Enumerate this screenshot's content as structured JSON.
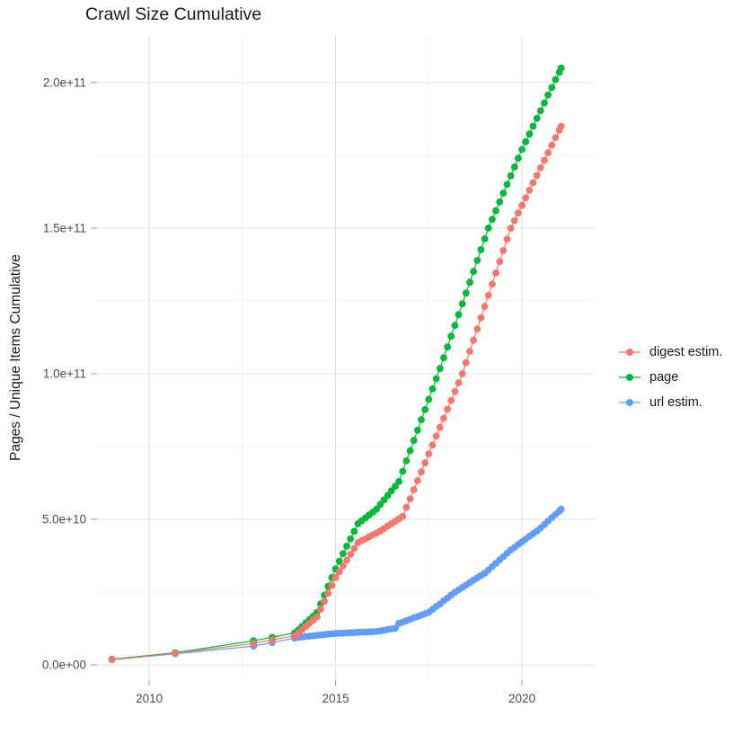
{
  "title": "Crawl Size Cumulative",
  "y_axis_title": "Pages / Unique Items Cumulative",
  "legend": {
    "position": "right",
    "items": [
      {
        "label": "digest estim.",
        "color": "#F8766D"
      },
      {
        "label": "page",
        "color": "#00BA38"
      },
      {
        "label": "url estim.",
        "color": "#619CFF"
      }
    ]
  },
  "chart_data": {
    "type": "line",
    "title": "Crawl Size Cumulative",
    "xlabel": "",
    "ylabel": "Pages / Unique Items Cumulative",
    "x_unit": "year (decimal)",
    "y_unit": "billions of items (1e9)",
    "x_domain": [
      2008.6,
      2021.95
    ],
    "y_domain_billions": [
      -5.2,
      216
    ],
    "grid": true,
    "legend_position": "right",
    "x_ticks": [
      {
        "value": 2010,
        "label": "2010"
      },
      {
        "value": 2015,
        "label": "2015"
      },
      {
        "value": 2020,
        "label": "2020"
      }
    ],
    "x_minor_ticks": [
      2012.5,
      2017.5
    ],
    "y_ticks": [
      {
        "value": 0,
        "label": "0.0e+00"
      },
      {
        "value": 50,
        "label": "5.0e+10"
      },
      {
        "value": 100,
        "label": "1.0e+11"
      },
      {
        "value": 150,
        "label": "1.5e+11"
      },
      {
        "value": 200,
        "label": "2.0e+11"
      }
    ],
    "y_minor_ticks": [
      25,
      75,
      125,
      175
    ],
    "series": [
      {
        "name": "page",
        "color": "#00BA38",
        "points": [
          [
            2009.0,
            2.0
          ],
          [
            2010.7,
            4.2
          ],
          [
            2012.8,
            8.3
          ],
          [
            2013.3,
            9.5
          ],
          [
            2013.9,
            11.0
          ],
          [
            2014.0,
            12.0
          ],
          [
            2014.1,
            13.2
          ],
          [
            2014.2,
            14.4
          ],
          [
            2014.3,
            15.6
          ],
          [
            2014.4,
            16.8
          ],
          [
            2014.5,
            18.0
          ],
          [
            2014.6,
            21.0
          ],
          [
            2014.7,
            24.0
          ],
          [
            2014.8,
            27.0
          ],
          [
            2014.9,
            30.0
          ],
          [
            2015.0,
            33.0
          ],
          [
            2015.1,
            35.6
          ],
          [
            2015.2,
            38.2
          ],
          [
            2015.3,
            40.8
          ],
          [
            2015.4,
            43.3
          ],
          [
            2015.5,
            45.9
          ],
          [
            2015.6,
            48.5
          ],
          [
            2015.7,
            49.5
          ],
          [
            2015.8,
            50.5
          ],
          [
            2015.9,
            51.5
          ],
          [
            2016.0,
            52.5
          ],
          [
            2016.1,
            53.5
          ],
          [
            2016.2,
            55.1
          ],
          [
            2016.3,
            56.7
          ],
          [
            2016.4,
            58.2
          ],
          [
            2016.5,
            59.8
          ],
          [
            2016.6,
            61.4
          ],
          [
            2016.7,
            63.0
          ],
          [
            2016.8,
            66.5
          ],
          [
            2016.9,
            70.1
          ],
          [
            2017.0,
            73.6
          ],
          [
            2017.1,
            77.1
          ],
          [
            2017.2,
            80.6
          ],
          [
            2017.3,
            84.2
          ],
          [
            2017.4,
            87.7
          ],
          [
            2017.5,
            91.2
          ],
          [
            2017.6,
            94.8
          ],
          [
            2017.7,
            98.3
          ],
          [
            2017.8,
            101.8
          ],
          [
            2017.9,
            105.5
          ],
          [
            2018.0,
            109.2
          ],
          [
            2018.1,
            112.9
          ],
          [
            2018.2,
            116.6
          ],
          [
            2018.3,
            120.3
          ],
          [
            2018.4,
            124.0
          ],
          [
            2018.5,
            127.7
          ],
          [
            2018.6,
            131.4
          ],
          [
            2018.7,
            135.1
          ],
          [
            2018.8,
            138.9
          ],
          [
            2018.9,
            142.6
          ],
          [
            2019.0,
            146.3
          ],
          [
            2019.1,
            150.0
          ],
          [
            2019.2,
            153.0
          ],
          [
            2019.3,
            156.0
          ],
          [
            2019.4,
            159.0
          ],
          [
            2019.5,
            162.0
          ],
          [
            2019.6,
            165.0
          ],
          [
            2019.7,
            168.0
          ],
          [
            2019.8,
            171.0
          ],
          [
            2019.9,
            174.0
          ],
          [
            2020.0,
            177.0
          ],
          [
            2020.1,
            179.7
          ],
          [
            2020.2,
            182.3
          ],
          [
            2020.3,
            185.0
          ],
          [
            2020.4,
            187.7
          ],
          [
            2020.5,
            190.3
          ],
          [
            2020.6,
            193.0
          ],
          [
            2020.7,
            195.7
          ],
          [
            2020.8,
            198.3
          ],
          [
            2020.9,
            201.0
          ],
          [
            2021.0,
            203.5
          ],
          [
            2021.05,
            205.0
          ]
        ]
      },
      {
        "name": "url estim.",
        "color": "#619CFF",
        "points": [
          [
            2009.0,
            1.8
          ],
          [
            2010.7,
            3.8
          ],
          [
            2012.8,
            6.5
          ],
          [
            2013.3,
            7.7
          ],
          [
            2013.9,
            9.2
          ],
          [
            2014.0,
            9.5
          ],
          [
            2014.1,
            9.6
          ],
          [
            2014.2,
            9.8
          ],
          [
            2014.3,
            9.9
          ],
          [
            2014.4,
            10.0
          ],
          [
            2014.5,
            10.2
          ],
          [
            2014.6,
            10.3
          ],
          [
            2014.7,
            10.4
          ],
          [
            2014.8,
            10.6
          ],
          [
            2014.9,
            10.7
          ],
          [
            2015.0,
            10.8
          ],
          [
            2015.1,
            10.9
          ],
          [
            2015.2,
            10.9
          ],
          [
            2015.3,
            11.0
          ],
          [
            2015.4,
            11.1
          ],
          [
            2015.5,
            11.1
          ],
          [
            2015.6,
            11.2
          ],
          [
            2015.7,
            11.3
          ],
          [
            2015.8,
            11.3
          ],
          [
            2015.9,
            11.4
          ],
          [
            2016.0,
            11.4
          ],
          [
            2016.1,
            11.5
          ],
          [
            2016.2,
            11.7
          ],
          [
            2016.3,
            11.9
          ],
          [
            2016.4,
            12.2
          ],
          [
            2016.5,
            12.4
          ],
          [
            2016.6,
            12.6
          ],
          [
            2016.7,
            14.3
          ],
          [
            2016.8,
            14.7
          ],
          [
            2016.9,
            15.2
          ],
          [
            2017.0,
            15.7
          ],
          [
            2017.1,
            16.2
          ],
          [
            2017.2,
            16.6
          ],
          [
            2017.3,
            17.1
          ],
          [
            2017.4,
            17.6
          ],
          [
            2017.5,
            18.1
          ],
          [
            2017.6,
            19.1
          ],
          [
            2017.7,
            20.1
          ],
          [
            2017.8,
            21.0
          ],
          [
            2017.9,
            22.0
          ],
          [
            2018.0,
            23.0
          ],
          [
            2018.1,
            24.0
          ],
          [
            2018.2,
            25.0
          ],
          [
            2018.3,
            25.8
          ],
          [
            2018.4,
            26.6
          ],
          [
            2018.5,
            27.4
          ],
          [
            2018.6,
            28.3
          ],
          [
            2018.7,
            29.1
          ],
          [
            2018.8,
            29.9
          ],
          [
            2018.9,
            30.7
          ],
          [
            2019.0,
            31.5
          ],
          [
            2019.1,
            32.6
          ],
          [
            2019.2,
            33.8
          ],
          [
            2019.3,
            34.9
          ],
          [
            2019.4,
            36.1
          ],
          [
            2019.5,
            37.2
          ],
          [
            2019.6,
            38.4
          ],
          [
            2019.7,
            39.5
          ],
          [
            2019.8,
            40.4
          ],
          [
            2019.9,
            41.4
          ],
          [
            2020.0,
            42.3
          ],
          [
            2020.1,
            43.2
          ],
          [
            2020.2,
            44.2
          ],
          [
            2020.3,
            45.1
          ],
          [
            2020.4,
            46.0
          ],
          [
            2020.5,
            47.0
          ],
          [
            2020.6,
            48.2
          ],
          [
            2020.7,
            49.4
          ],
          [
            2020.8,
            50.6
          ],
          [
            2020.9,
            51.7
          ],
          [
            2021.0,
            52.8
          ],
          [
            2021.05,
            53.5
          ]
        ]
      },
      {
        "name": "digest estim.",
        "color": "#F8766D",
        "points": [
          [
            2009.0,
            1.8
          ],
          [
            2010.7,
            4.0
          ],
          [
            2012.8,
            7.4
          ],
          [
            2013.3,
            8.6
          ],
          [
            2013.9,
            10.0
          ],
          [
            2014.0,
            11.0
          ],
          [
            2014.1,
            12.1
          ],
          [
            2014.2,
            13.2
          ],
          [
            2014.3,
            14.3
          ],
          [
            2014.4,
            15.4
          ],
          [
            2014.5,
            16.5
          ],
          [
            2014.6,
            19.2
          ],
          [
            2014.7,
            21.9
          ],
          [
            2014.8,
            24.6
          ],
          [
            2014.9,
            27.3
          ],
          [
            2015.0,
            30.0
          ],
          [
            2015.1,
            32.0
          ],
          [
            2015.2,
            34.0
          ],
          [
            2015.3,
            36.0
          ],
          [
            2015.4,
            38.0
          ],
          [
            2015.5,
            40.0
          ],
          [
            2015.6,
            42.0
          ],
          [
            2015.7,
            42.7
          ],
          [
            2015.8,
            43.3
          ],
          [
            2015.9,
            44.0
          ],
          [
            2016.0,
            44.7
          ],
          [
            2016.1,
            45.3
          ],
          [
            2016.2,
            46.0
          ],
          [
            2016.3,
            46.8
          ],
          [
            2016.4,
            47.7
          ],
          [
            2016.5,
            48.5
          ],
          [
            2016.6,
            49.3
          ],
          [
            2016.7,
            50.2
          ],
          [
            2016.8,
            51.0
          ],
          [
            2016.9,
            54.1
          ],
          [
            2017.0,
            57.1
          ],
          [
            2017.1,
            60.2
          ],
          [
            2017.2,
            63.3
          ],
          [
            2017.3,
            66.3
          ],
          [
            2017.4,
            69.4
          ],
          [
            2017.5,
            72.5
          ],
          [
            2017.6,
            75.5
          ],
          [
            2017.7,
            78.6
          ],
          [
            2017.8,
            81.6
          ],
          [
            2017.9,
            84.7
          ],
          [
            2018.0,
            87.8
          ],
          [
            2018.1,
            90.8
          ],
          [
            2018.2,
            93.9
          ],
          [
            2018.3,
            96.9
          ],
          [
            2018.4,
            100.0
          ],
          [
            2018.5,
            103.8
          ],
          [
            2018.6,
            107.7
          ],
          [
            2018.7,
            111.5
          ],
          [
            2018.8,
            115.4
          ],
          [
            2018.9,
            119.2
          ],
          [
            2019.0,
            123.1
          ],
          [
            2019.1,
            126.9
          ],
          [
            2019.2,
            130.8
          ],
          [
            2019.3,
            134.6
          ],
          [
            2019.4,
            138.5
          ],
          [
            2019.5,
            142.3
          ],
          [
            2019.6,
            146.2
          ],
          [
            2019.7,
            150.0
          ],
          [
            2019.8,
            152.6
          ],
          [
            2019.9,
            155.2
          ],
          [
            2020.0,
            157.8
          ],
          [
            2020.1,
            160.4
          ],
          [
            2020.2,
            163.0
          ],
          [
            2020.3,
            165.6
          ],
          [
            2020.4,
            168.1
          ],
          [
            2020.5,
            170.7
          ],
          [
            2020.6,
            173.3
          ],
          [
            2020.7,
            175.9
          ],
          [
            2020.8,
            178.5
          ],
          [
            2020.9,
            181.1
          ],
          [
            2021.0,
            183.6
          ],
          [
            2021.05,
            185.0
          ]
        ]
      }
    ]
  }
}
